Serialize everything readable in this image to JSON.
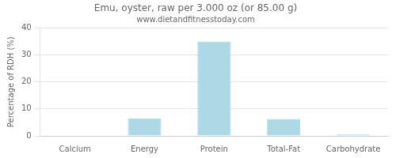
{
  "chart_data": {
    "type": "bar",
    "title": "Emu, oyster, raw per 3.000 oz (or 85.00 g)",
    "subtitle": "www.dietandfitnesstoday.com",
    "categories": [
      "Calcium",
      "Energy",
      "Protein",
      "Total-Fat",
      "Carbohydrate"
    ],
    "values": [
      0,
      6.5,
      35,
      6.3,
      0.5
    ],
    "color": "#add8e6",
    "ylabel": "Percentage of RDH (%)",
    "ylim": [
      0,
      40
    ],
    "yticks": [
      0,
      10,
      20,
      30,
      40
    ],
    "grid": true
  }
}
